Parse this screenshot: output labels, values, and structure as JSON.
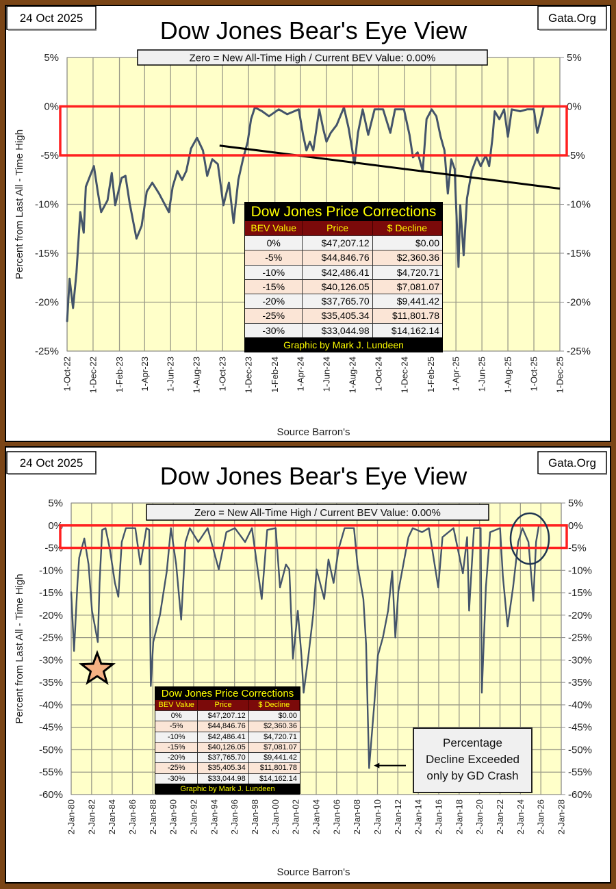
{
  "price_corrections_table": {
    "title": "Dow Jones Price Corrections",
    "columns": [
      "BEV Value",
      "Price",
      "$ Decline"
    ],
    "rows": [
      [
        "0%",
        "$47,207.12",
        "$0.00"
      ],
      [
        "-5%",
        "$44,846.76",
        "$2,360.36"
      ],
      [
        "-10%",
        "$42,486.41",
        "$4,720.71"
      ],
      [
        "-15%",
        "$40,126.05",
        "$7,081.07"
      ],
      [
        "-20%",
        "$37,765.70",
        "$9,441.42"
      ],
      [
        "-25%",
        "$35,405.34",
        "$11,801.78"
      ],
      [
        "-30%",
        "$33,044.98",
        "$14,162.14"
      ]
    ],
    "footer": "Graphic by Mark J. Lundeen"
  },
  "colors": {
    "line": "#44546a",
    "plot_bg": "#ffffc9",
    "highlight_box": "#ff2020",
    "trendline": "#000000",
    "table_title_text": "#ffff00",
    "table_header_bg": "#7b0a0a",
    "frame": "#7a4516"
  },
  "chart_data": [
    {
      "type": "line",
      "date_label": "24 Oct 2025",
      "site_label": "Gata.Org",
      "title": "Dow Jones Bear's Eye View",
      "subtitle": "Zero = New All-Time High / Current BEV Value:  0.00%",
      "ylabel": "Percent  from  Last  All - Time  High",
      "xlabel": "Source Barron's",
      "ylim": [
        -25,
        5
      ],
      "xlim": [
        "2022-10-01",
        "2025-12-01"
      ],
      "grid": true,
      "y_tick_labels": [
        "5%",
        "0%",
        "-5%",
        "-10%",
        "-15%",
        "-20%",
        "-25%"
      ],
      "y_ticks": [
        5,
        0,
        -5,
        -10,
        -15,
        -20,
        -25
      ],
      "x_tick_labels": [
        "1-Oct-22",
        "1-Dec-22",
        "1-Feb-23",
        "1-Apr-23",
        "1-Jun-23",
        "1-Aug-23",
        "1-Oct-23",
        "1-Dec-23",
        "1-Feb-24",
        "1-Apr-24",
        "1-Jun-24",
        "1-Aug-24",
        "1-Oct-24",
        "1-Dec-24",
        "1-Feb-25",
        "1-Apr-25",
        "1-Jun-25",
        "1-Aug-25",
        "1-Oct-25",
        "1-Dec-25"
      ],
      "x_ticks": [
        "2022-10-01",
        "2022-12-01",
        "2023-02-01",
        "2023-04-01",
        "2023-06-01",
        "2023-08-01",
        "2023-10-01",
        "2023-12-01",
        "2024-02-01",
        "2024-04-01",
        "2024-06-01",
        "2024-08-01",
        "2024-10-01",
        "2024-12-01",
        "2025-02-01",
        "2025-04-01",
        "2025-06-01",
        "2025-08-01",
        "2025-10-01",
        "2025-12-01"
      ],
      "highlight_band": [
        -5,
        0
      ],
      "trendline": [
        [
          "2023-09-24",
          -4.0
        ],
        [
          "2025-12-01",
          -8.4
        ]
      ],
      "series": [
        {
          "points": [
            [
              "2022-10-01",
              -22
            ],
            [
              "2022-10-07",
              -17.6
            ],
            [
              "2022-10-15",
              -20.6
            ],
            [
              "2022-10-23",
              -17
            ],
            [
              "2022-11-01",
              -10.8
            ],
            [
              "2022-11-09",
              -12.9
            ],
            [
              "2022-11-14",
              -8.2
            ],
            [
              "2022-12-03",
              -6.1
            ],
            [
              "2022-12-12",
              -8.7
            ],
            [
              "2022-12-20",
              -10.8
            ],
            [
              "2023-01-04",
              -9.6
            ],
            [
              "2023-01-14",
              -6.8
            ],
            [
              "2023-01-22",
              -10.1
            ],
            [
              "2023-02-06",
              -7.3
            ],
            [
              "2023-02-15",
              -7.1
            ],
            [
              "2023-02-25",
              -9.9
            ],
            [
              "2023-03-13",
              -13.5
            ],
            [
              "2023-03-25",
              -12.2
            ],
            [
              "2023-04-06",
              -8.7
            ],
            [
              "2023-04-19",
              -7.8
            ],
            [
              "2023-05-05",
              -8.9
            ],
            [
              "2023-05-28",
              -10.8
            ],
            [
              "2023-06-06",
              -8.2
            ],
            [
              "2023-06-17",
              -6.6
            ],
            [
              "2023-06-28",
              -7.5
            ],
            [
              "2023-07-08",
              -6.6
            ],
            [
              "2023-07-19",
              -4.3
            ],
            [
              "2023-08-02",
              -3.2
            ],
            [
              "2023-08-16",
              -4.5
            ],
            [
              "2023-08-26",
              -7.1
            ],
            [
              "2023-09-07",
              -5.4
            ],
            [
              "2023-09-20",
              -5.9
            ],
            [
              "2023-10-03",
              -10.1
            ],
            [
              "2023-10-16",
              -7.8
            ],
            [
              "2023-10-27",
              -11.9
            ],
            [
              "2023-11-07",
              -7.5
            ],
            [
              "2023-11-18",
              -5.4
            ],
            [
              "2023-11-29",
              -3.6
            ],
            [
              "2023-12-07",
              -1.3
            ],
            [
              "2023-12-16",
              -0.1
            ],
            [
              "2024-01-02",
              -0.5
            ],
            [
              "2024-01-18",
              -1
            ],
            [
              "2024-02-10",
              -0.3
            ],
            [
              "2024-03-01",
              -0.8
            ],
            [
              "2024-03-28",
              -0.3
            ],
            [
              "2024-04-07",
              -2.9
            ],
            [
              "2024-04-15",
              -4.5
            ],
            [
              "2024-04-23",
              -3.6
            ],
            [
              "2024-05-01",
              -4.5
            ],
            [
              "2024-05-15",
              -0.3
            ],
            [
              "2024-05-25",
              -2.4
            ],
            [
              "2024-06-01",
              -3.6
            ],
            [
              "2024-06-11",
              -2.7
            ],
            [
              "2024-06-25",
              -1.9
            ],
            [
              "2024-07-12",
              -0.1
            ],
            [
              "2024-07-23",
              -2.2
            ],
            [
              "2024-08-06",
              -5.9
            ],
            [
              "2024-08-14",
              -2.7
            ],
            [
              "2024-08-25",
              -0.3
            ],
            [
              "2024-09-07",
              -2.9
            ],
            [
              "2024-09-22",
              -0.3
            ],
            [
              "2024-10-12",
              -0.3
            ],
            [
              "2024-10-29",
              -2.7
            ],
            [
              "2024-11-09",
              -0.3
            ],
            [
              "2024-11-30",
              -0.3
            ],
            [
              "2024-12-13",
              -2.9
            ],
            [
              "2024-12-21",
              -5.2
            ],
            [
              "2025-01-01",
              -4.7
            ],
            [
              "2025-01-13",
              -6.6
            ],
            [
              "2025-01-22",
              -1.3
            ],
            [
              "2025-02-03",
              -0.3
            ],
            [
              "2025-02-14",
              -1
            ],
            [
              "2025-02-24",
              -3.1
            ],
            [
              "2025-03-05",
              -4.5
            ],
            [
              "2025-03-13",
              -8.9
            ],
            [
              "2025-03-21",
              -5.4
            ],
            [
              "2025-03-29",
              -6.4
            ],
            [
              "2025-04-07",
              -16.4
            ],
            [
              "2025-04-11",
              -10.1
            ],
            [
              "2025-04-19",
              -15.2
            ],
            [
              "2025-04-27",
              -9.4
            ],
            [
              "2025-05-08",
              -6.6
            ],
            [
              "2025-05-20",
              -5.2
            ],
            [
              "2025-05-29",
              -6.1
            ],
            [
              "2025-06-10",
              -5
            ],
            [
              "2025-06-18",
              -6.1
            ],
            [
              "2025-06-26",
              -3.1
            ],
            [
              "2025-07-01",
              -0.5
            ],
            [
              "2025-07-12",
              -1.3
            ],
            [
              "2025-07-23",
              -0.3
            ],
            [
              "2025-08-01",
              -3.1
            ],
            [
              "2025-08-10",
              -0.3
            ],
            [
              "2025-08-30",
              -0.5
            ],
            [
              "2025-09-15",
              -0.3
            ],
            [
              "2025-10-01",
              -0.3
            ],
            [
              "2025-10-09",
              -2.7
            ],
            [
              "2025-10-17",
              -1.3
            ],
            [
              "2025-10-24",
              0
            ]
          ]
        }
      ]
    },
    {
      "type": "line",
      "date_label": "24 Oct 2025",
      "site_label": "Gata.Org",
      "title": "Dow Jones Bear's Eye View",
      "subtitle": "Zero = New All-Time High / Current BEV Value:  0.00%",
      "ylabel": "Percent  from  Last  All - Time  High",
      "xlabel": "Source Barron's",
      "ylim": [
        -60,
        5
      ],
      "xlim": [
        "1980-01-02",
        "2028-01-02"
      ],
      "grid": true,
      "y_tick_labels": [
        "5%",
        "0%",
        "-5%",
        "-10%",
        "-15%",
        "-20%",
        "-25%",
        "-30%",
        "-35%",
        "-40%",
        "-45%",
        "-50%",
        "-55%",
        "-60%"
      ],
      "y_ticks": [
        5,
        0,
        -5,
        -10,
        -15,
        -20,
        -25,
        -30,
        -35,
        -40,
        -45,
        -50,
        -55,
        -60
      ],
      "x_tick_labels": [
        "2-Jan-80",
        "2-Jan-82",
        "2-Jan-84",
        "2-Jan-86",
        "2-Jan-88",
        "2-Jan-90",
        "2-Jan-92",
        "2-Jan-94",
        "2-Jan-96",
        "2-Jan-98",
        "2-Jan-00",
        "2-Jan-02",
        "2-Jan-04",
        "2-Jan-06",
        "2-Jan-08",
        "2-Jan-10",
        "2-Jan-12",
        "2-Jan-14",
        "2-Jan-16",
        "2-Jan-18",
        "2-Jan-20",
        "2-Jan-22",
        "2-Jan-24",
        "2-Jan-26",
        "2-Jan-28"
      ],
      "x_ticks": [
        "1980-01-02",
        "1982-01-02",
        "1984-01-02",
        "1986-01-02",
        "1988-01-02",
        "1990-01-02",
        "1992-01-02",
        "1994-01-02",
        "1996-01-02",
        "1998-01-02",
        "2000-01-02",
        "2002-01-02",
        "2004-01-02",
        "2006-01-02",
        "2008-01-02",
        "2010-01-02",
        "2012-01-02",
        "2014-01-02",
        "2016-01-02",
        "2018-01-02",
        "2020-01-02",
        "2022-01-02",
        "2024-01-02",
        "2026-01-02",
        "2028-01-02"
      ],
      "highlight_band": [
        -5,
        0
      ],
      "annotation": {
        "text_lines": [
          "Percentage",
          "Decline Exceeded",
          "only by GD Crash"
        ],
        "points_to": [
          "2009-03-09",
          -54
        ]
      },
      "markers": [
        "star-icon near 1982 low",
        "circle around 2024-2025"
      ],
      "series": [
        {
          "points": [
            [
              "1980-01-02",
              -14.8
            ],
            [
              "1980-04-15",
              -28
            ],
            [
              "1980-08-15",
              -12.8
            ],
            [
              "1980-10-15",
              -7.2
            ],
            [
              "1981-04-15",
              -2.9
            ],
            [
              "1981-09-15",
              -8.7
            ],
            [
              "1982-01-15",
              -19
            ],
            [
              "1982-04-15",
              -22
            ],
            [
              "1982-08-12",
              -26
            ],
            [
              "1982-10-15",
              -12.8
            ],
            [
              "1983-01-15",
              -1
            ],
            [
              "1983-05-15",
              -0.6
            ],
            [
              "1983-10-15",
              -5.2
            ],
            [
              "1984-04-15",
              -12.8
            ],
            [
              "1984-08-15",
              -15.9
            ],
            [
              "1984-12-15",
              -3.7
            ],
            [
              "1985-05-15",
              -0.6
            ],
            [
              "1986-04-15",
              -0.6
            ],
            [
              "1986-10-15",
              -8.7
            ],
            [
              "1987-05-15",
              -0.6
            ],
            [
              "1987-08-25",
              -1
            ],
            [
              "1987-10-19",
              -35.8
            ],
            [
              "1988-01-15",
              -26
            ],
            [
              "1988-09-15",
              -19.9
            ],
            [
              "1989-05-15",
              -10.2
            ],
            [
              "1989-10-09",
              -0.6
            ],
            [
              "1990-04-15",
              -8.7
            ],
            [
              "1990-10-11",
              -21
            ],
            [
              "1991-03-15",
              -3.7
            ],
            [
              "1991-08-15",
              -0.6
            ],
            [
              "1992-06-15",
              -3.7
            ],
            [
              "1993-05-15",
              -0.6
            ],
            [
              "1994-06-15",
              -9.8
            ],
            [
              "1995-03-15",
              -1.5
            ],
            [
              "1996-01-15",
              -0.6
            ],
            [
              "1997-01-15",
              -3.7
            ],
            [
              "1997-09-15",
              -0.6
            ],
            [
              "1998-08-31",
              -16.4
            ],
            [
              "1999-03-15",
              -1
            ],
            [
              "2000-01-14",
              -0.6
            ],
            [
              "2000-06-15",
              -13.8
            ],
            [
              "2001-01-15",
              -8.7
            ],
            [
              "2001-05-15",
              -9.8
            ],
            [
              "2001-09-21",
              -29.7
            ],
            [
              "2002-03-15",
              -19
            ],
            [
              "2002-07-23",
              -29
            ],
            [
              "2002-10-09",
              -37.3
            ],
            [
              "2003-03-11",
              -30
            ],
            [
              "2003-09-15",
              -20
            ],
            [
              "2004-01-15",
              -9.8
            ],
            [
              "2004-10-15",
              -16.4
            ],
            [
              "2005-03-15",
              -7.6
            ],
            [
              "2005-09-15",
              -12.8
            ],
            [
              "2006-03-15",
              -5.2
            ],
            [
              "2006-10-15",
              -0.6
            ],
            [
              "2007-09-15",
              -0.6
            ],
            [
              "2008-01-15",
              -8.7
            ],
            [
              "2008-08-15",
              -16.4
            ],
            [
              "2008-11-20",
              -26.6
            ],
            [
              "2009-01-20",
              -41.9
            ],
            [
              "2009-03-09",
              -54.1
            ],
            [
              "2009-09-15",
              -39.3
            ],
            [
              "2010-01-15",
              -29
            ],
            [
              "2010-07-15",
              -25
            ],
            [
              "2011-01-15",
              -19
            ],
            [
              "2011-06-15",
              -10.2
            ],
            [
              "2011-10-03",
              -25
            ],
            [
              "2012-01-15",
              -14.8
            ],
            [
              "2012-08-15",
              -7.6
            ],
            [
              "2013-01-15",
              -2.6
            ],
            [
              "2013-06-15",
              -0.6
            ],
            [
              "2014-05-15",
              -1.5
            ],
            [
              "2015-01-15",
              -0.6
            ],
            [
              "2015-12-15",
              -13.8
            ],
            [
              "2016-05-15",
              -2.6
            ],
            [
              "2017-06-15",
              -0.6
            ],
            [
              "2018-05-15",
              -10.7
            ],
            [
              "2018-10-15",
              -2.6
            ],
            [
              "2018-12-24",
              -19
            ],
            [
              "2019-06-15",
              -0.6
            ],
            [
              "2020-02-12",
              -0.6
            ],
            [
              "2020-03-23",
              -37.3
            ],
            [
              "2020-08-15",
              -13.8
            ],
            [
              "2021-01-15",
              -1.5
            ],
            [
              "2022-01-04",
              -0.6
            ],
            [
              "2022-04-15",
              -11.3
            ],
            [
              "2022-09-30",
              -22.5
            ],
            [
              "2023-04-15",
              -13.8
            ],
            [
              "2023-10-15",
              -3.7
            ],
            [
              "2024-03-15",
              -0.6
            ],
            [
              "2024-10-15",
              -3.7
            ],
            [
              "2025-04-08",
              -16.8
            ],
            [
              "2025-07-15",
              -3.7
            ],
            [
              "2025-10-24",
              0
            ]
          ]
        }
      ]
    }
  ]
}
